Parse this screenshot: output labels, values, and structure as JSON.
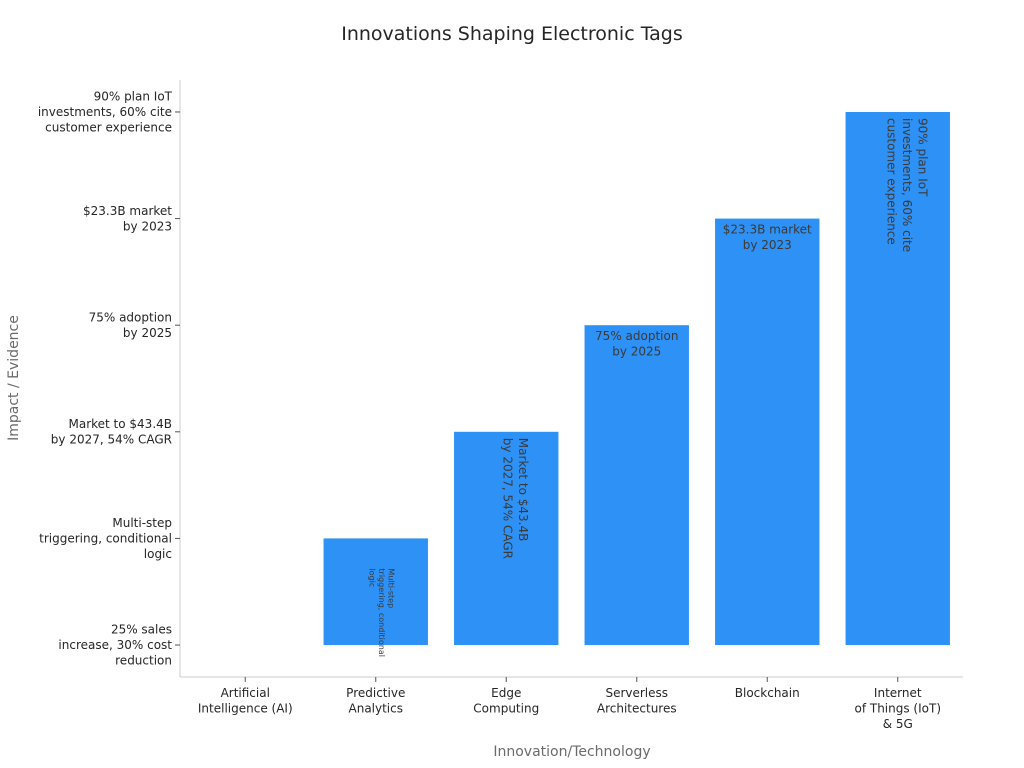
{
  "chart_data": {
    "type": "bar",
    "title": "Innovations Shaping Electronic Tags",
    "xlabel": "Innovation/Technology",
    "ylabel": "Impact / Evidence",
    "categories": [
      "Artificial\nIntelligence (AI)",
      "Predictive\nAnalytics",
      "Edge\nComputing",
      "Serverless\nArchitectures",
      "Blockchain",
      "Internet\nof Things (IoT)\n& 5G"
    ],
    "y_ticks": [
      "25% sales\nincrease, 30% cost\nreduction",
      "Multi-step\ntriggering, conditional\nlogic",
      "Market to $43.4B\nby 2027, 54% CAGR",
      "75% adoption\nby 2025",
      "$23.3B market\nby 2023",
      "90% plan IoT\ninvestments, 60% cite\ncustomer experience"
    ],
    "values": [
      0,
      1,
      2,
      3,
      4,
      5
    ],
    "bar_labels": [
      "",
      "Multi-step\ntriggering, conditional\nlogic",
      "Market to $43.4B\nby 2027, 54% CAGR",
      "75% adoption\nby 2025",
      "$23.3B market\nby 2023",
      "90% plan IoT\ninvestments, 60% cite\ncustomer experience"
    ],
    "bar_label_rotated": [
      false,
      true,
      true,
      false,
      false,
      true
    ],
    "ylim": [
      -0.3,
      5.3
    ],
    "grid": false,
    "bar_color": "#2e91f5"
  }
}
